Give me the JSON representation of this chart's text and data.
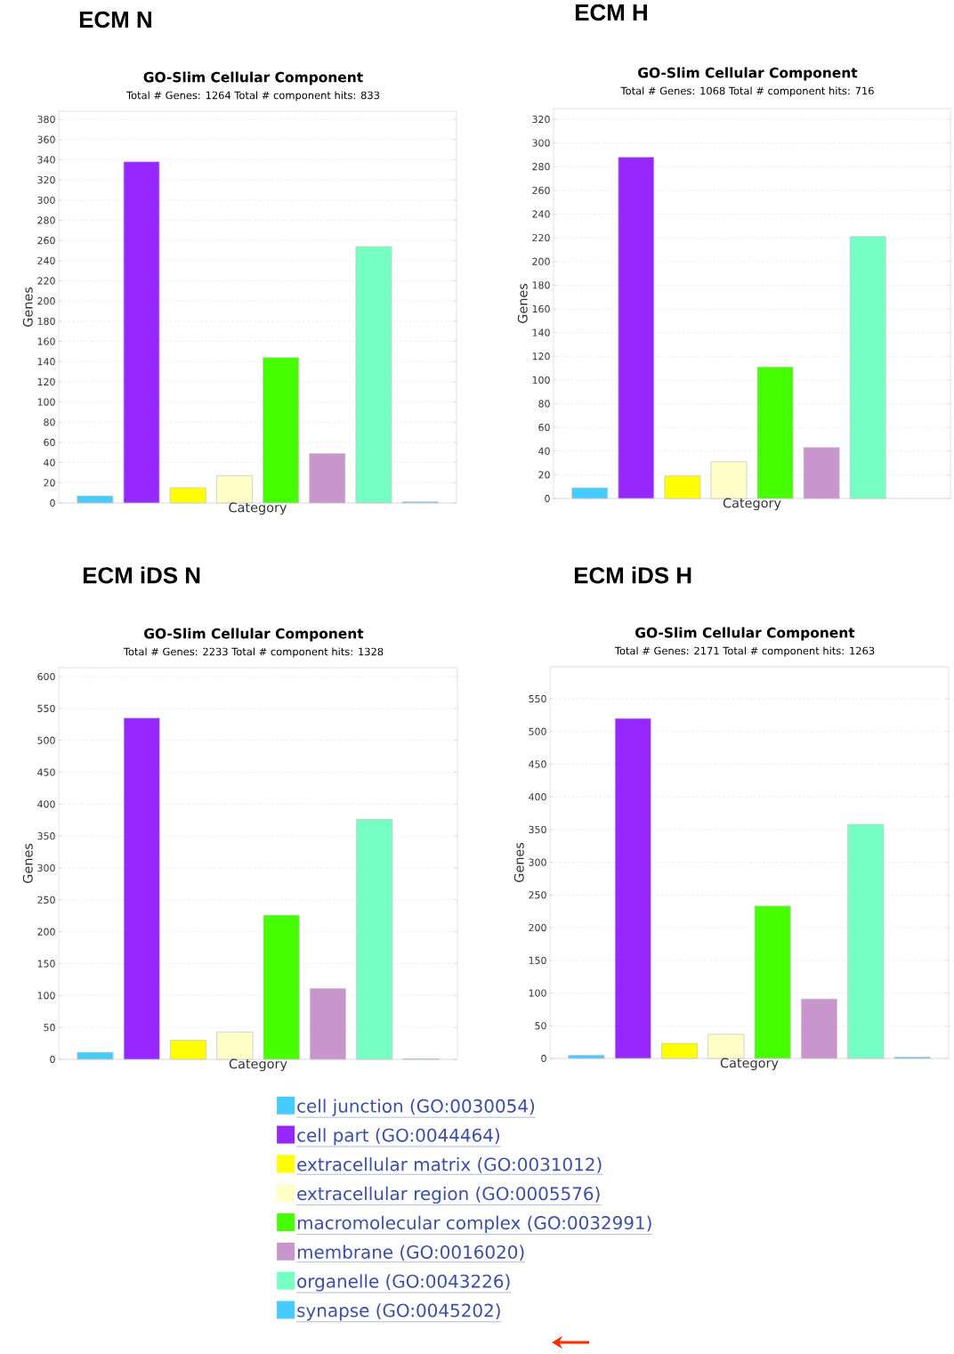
{
  "chart_data": [
    {
      "type": "bar",
      "title": "ECM N",
      "subtitle": "GO-Slim Cellular Component",
      "annotations": [
        "Total # Genes: 1264    Total # component hits: 833"
      ],
      "xlabel": "Category",
      "ylabel": "Genes",
      "categories": [
        null
      ],
      "ylim": [
        0,
        388
      ],
      "yticks": [
        0,
        20,
        40,
        60,
        80,
        100,
        120,
        140,
        160,
        180,
        200,
        220,
        240,
        260,
        280,
        300,
        320,
        340,
        360,
        380
      ],
      "grid": "y",
      "series": [
        {
          "color": "#46cbff",
          "values": [
            7
          ]
        },
        {
          "color": "#9627ff",
          "values": [
            338
          ]
        },
        {
          "color": "#ffff00",
          "values": [
            15
          ]
        },
        {
          "color": "#ffffc8",
          "values": [
            27
          ]
        },
        {
          "color": "#46ff00",
          "values": [
            144
          ]
        },
        {
          "color": "#c896cc",
          "values": [
            49
          ]
        },
        {
          "color": "#75ffc3",
          "values": [
            254
          ]
        },
        {
          "color": "#46cbff",
          "values": [
            1
          ]
        }
      ]
    },
    {
      "type": "bar",
      "title": "ECM H",
      "subtitle": "GO-Slim Cellular Component",
      "annotations": [
        "Total # Genes: 1068    Total # component hits: 716"
      ],
      "xlabel": "Category",
      "ylabel": "Genes",
      "categories": [
        null
      ],
      "ylim": [
        0,
        329
      ],
      "yticks": [
        0,
        20,
        40,
        60,
        80,
        100,
        120,
        140,
        160,
        180,
        200,
        220,
        240,
        260,
        280,
        300,
        320
      ],
      "grid": "y",
      "series": [
        {
          "color": "#46cbff",
          "values": [
            9
          ]
        },
        {
          "color": "#9627ff",
          "values": [
            288
          ]
        },
        {
          "color": "#ffff00",
          "values": [
            19
          ]
        },
        {
          "color": "#ffffc8",
          "values": [
            31
          ]
        },
        {
          "color": "#46ff00",
          "values": [
            111
          ]
        },
        {
          "color": "#c896cc",
          "values": [
            43
          ]
        },
        {
          "color": "#75ffc3",
          "values": [
            221
          ]
        },
        {
          "color": "#46cbff",
          "values": [
            null
          ]
        }
      ]
    },
    {
      "type": "bar",
      "title": "ECM iDS N",
      "subtitle": "GO-Slim Cellular Component",
      "annotations": [
        "Total # Genes: 2233    Total # component hits: 1328"
      ],
      "xlabel": "Category",
      "ylabel": "Genes",
      "categories": [
        null
      ],
      "ylim": [
        0,
        614
      ],
      "yticks": [
        0,
        50,
        100,
        150,
        200,
        250,
        300,
        350,
        400,
        450,
        500,
        550,
        600
      ],
      "grid": "y",
      "legend": "bottom",
      "series": [
        {
          "name": "cell junction (GO:0030054)",
          "color": "#46cbff",
          "values": [
            11
          ]
        },
        {
          "name": "cell part (GO:0044464)",
          "color": "#9627ff",
          "values": [
            535
          ]
        },
        {
          "name": "extracellular matrix (GO:0031012)",
          "color": "#ffff00",
          "values": [
            30
          ]
        },
        {
          "name": "extracellular region (GO:0005576)",
          "color": "#ffffc8",
          "values": [
            43
          ]
        },
        {
          "name": "macromolecular complex (GO:0032991)",
          "color": "#46ff00",
          "values": [
            226
          ]
        },
        {
          "name": "membrane (GO:0016020)",
          "color": "#c896cc",
          "values": [
            111
          ]
        },
        {
          "name": "organelle (GO:0043226)",
          "color": "#75ffc3",
          "values": [
            376
          ]
        },
        {
          "name": "synapse (GO:0045202)",
          "color": "#46cbff",
          "values": [
            1
          ]
        }
      ]
    },
    {
      "type": "bar",
      "title": "ECM iDS H",
      "subtitle": "GO-Slim Cellular Component",
      "annotations": [
        "Total # Genes: 2171    Total # component hits: 1263"
      ],
      "xlabel": "Category",
      "ylabel": "Genes",
      "categories": [
        null
      ],
      "ylim": [
        0,
        599
      ],
      "yticks": [
        0,
        50,
        100,
        150,
        200,
        250,
        300,
        350,
        400,
        450,
        500,
        550
      ],
      "grid": "y",
      "series": [
        {
          "color": "#46cbff",
          "values": [
            5
          ]
        },
        {
          "color": "#9627ff",
          "values": [
            520
          ]
        },
        {
          "color": "#ffff00",
          "values": [
            23
          ]
        },
        {
          "color": "#ffffc8",
          "values": [
            37
          ]
        },
        {
          "color": "#46ff00",
          "values": [
            233
          ]
        },
        {
          "color": "#c896cc",
          "values": [
            91
          ]
        },
        {
          "color": "#75ffc3",
          "values": [
            358
          ]
        },
        {
          "color": "#46cbff",
          "values": [
            2
          ]
        }
      ]
    }
  ]
}
